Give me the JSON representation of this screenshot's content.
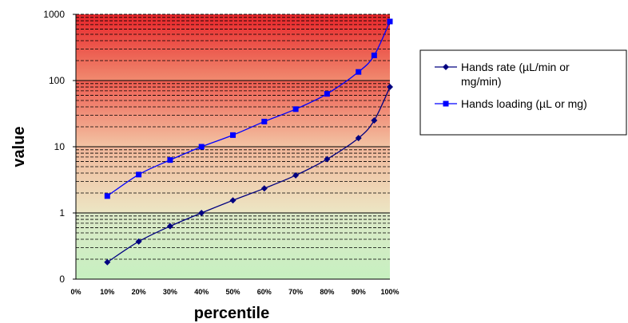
{
  "chart_data": {
    "type": "line",
    "xlabel": "percentile",
    "ylabel": "value",
    "yscale": "log",
    "ylim": [
      0.1,
      1000
    ],
    "y_tick_labels": [
      "0",
      "1",
      "10",
      "100",
      "1000"
    ],
    "y_tick_values": [
      0.1,
      1,
      10,
      100,
      1000
    ],
    "x_tick_labels": [
      "0%",
      "10%",
      "20%",
      "30%",
      "40%",
      "50%",
      "60%",
      "70%",
      "80%",
      "90%",
      "100%"
    ],
    "x_tick_values": [
      0,
      10,
      20,
      30,
      40,
      50,
      60,
      70,
      80,
      90,
      100
    ],
    "xlim": [
      0,
      100
    ],
    "grid": "dashed horizontal at each log minor step",
    "background_bands": [
      {
        "from": 100,
        "to": 1000,
        "colors": [
          "#e8252a",
          "#f08a6f"
        ]
      },
      {
        "from": 10,
        "to": 100,
        "colors": [
          "#ee5c50",
          "#f3c4a4"
        ]
      },
      {
        "from": 1,
        "to": 10,
        "colors": [
          "#f2b79a",
          "#ece6c4"
        ]
      },
      {
        "from": 0.1,
        "to": 1,
        "colors": [
          "#dde9c8",
          "#c6f0c0"
        ]
      }
    ],
    "legend_position": "right",
    "series": [
      {
        "name": "Hands rate (µL/min or mg/min)",
        "color": "#000080",
        "marker": "diamond",
        "x": [
          10,
          20,
          30,
          40,
          50,
          60,
          70,
          80,
          90,
          95,
          100
        ],
        "y": [
          0.18,
          0.37,
          0.63,
          1.0,
          1.55,
          2.35,
          3.7,
          6.5,
          13.5,
          25,
          80
        ]
      },
      {
        "name": "Hands loading (µL or mg)",
        "color": "#0000ff",
        "marker": "square",
        "x": [
          10,
          20,
          30,
          40,
          50,
          60,
          70,
          80,
          90,
          95,
          100
        ],
        "y": [
          1.8,
          3.8,
          6.3,
          10,
          15,
          24,
          37,
          63,
          135,
          240,
          780
        ]
      }
    ]
  }
}
